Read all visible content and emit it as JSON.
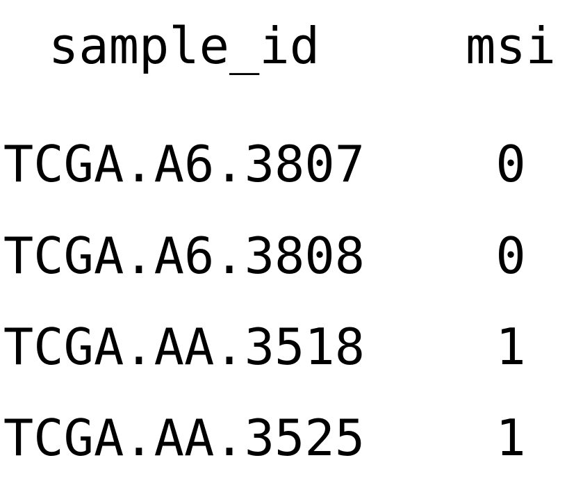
{
  "table": {
    "headers": [
      "sample_id",
      "msi"
    ],
    "rows": [
      [
        "TCGA.A6.3807",
        "0"
      ],
      [
        "TCGA.A6.3808",
        "0"
      ],
      [
        "TCGA.AA.3518",
        "1"
      ],
      [
        "TCGA.AA.3525",
        "1"
      ]
    ]
  }
}
